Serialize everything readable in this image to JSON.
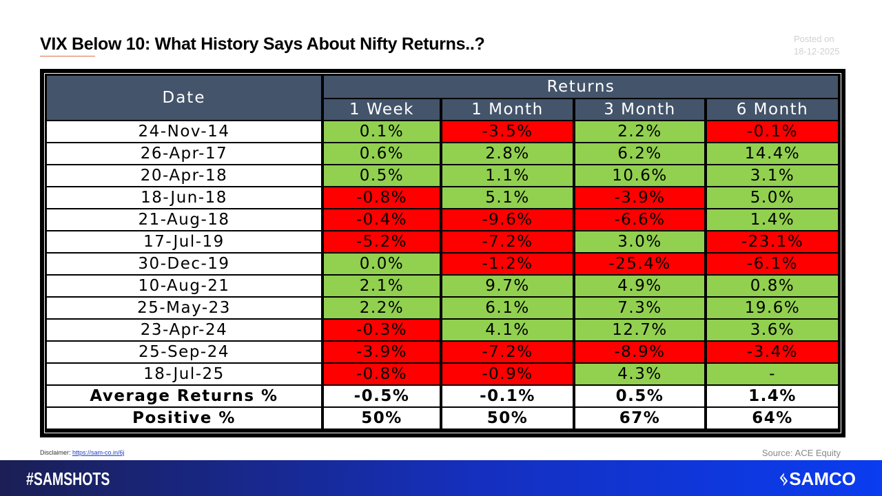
{
  "title": "VIX Below 10: What History Says About Nifty Returns..?",
  "posted": {
    "label": "Posted on",
    "date": "18-12-2025"
  },
  "table": {
    "date_header": "Date",
    "group_header": "Returns",
    "columns": [
      "1 Week",
      "1 Month",
      "3 Month",
      "6 Month"
    ],
    "rows": [
      {
        "date": "24-Nov-14",
        "values": [
          "0.1%",
          "-3.5%",
          "2.2%",
          "-0.1%"
        ]
      },
      {
        "date": "26-Apr-17",
        "values": [
          "0.6%",
          "2.8%",
          "6.2%",
          "14.4%"
        ]
      },
      {
        "date": "20-Apr-18",
        "values": [
          "0.5%",
          "1.1%",
          "10.6%",
          "3.1%"
        ]
      },
      {
        "date": "18-Jun-18",
        "values": [
          "-0.8%",
          "5.1%",
          "-3.9%",
          "5.0%"
        ]
      },
      {
        "date": "21-Aug-18",
        "values": [
          "-0.4%",
          "-9.6%",
          "-6.6%",
          "1.4%"
        ]
      },
      {
        "date": "17-Jul-19",
        "values": [
          "-5.2%",
          "-7.2%",
          "3.0%",
          "-23.1%"
        ]
      },
      {
        "date": "30-Dec-19",
        "values": [
          "0.0%",
          "-1.2%",
          "-25.4%",
          "-6.1%"
        ]
      },
      {
        "date": "10-Aug-21",
        "values": [
          "2.1%",
          "9.7%",
          "4.9%",
          "0.8%"
        ]
      },
      {
        "date": "25-May-23",
        "values": [
          "2.2%",
          "6.1%",
          "7.3%",
          "19.6%"
        ]
      },
      {
        "date": "23-Apr-24",
        "values": [
          "-0.3%",
          "4.1%",
          "12.7%",
          "3.6%"
        ]
      },
      {
        "date": "25-Sep-24",
        "values": [
          "-3.9%",
          "-7.2%",
          "-8.9%",
          "-3.4%"
        ]
      },
      {
        "date": "18-Jul-25",
        "values": [
          "-0.8%",
          "-0.9%",
          "4.3%",
          "-"
        ]
      }
    ],
    "summary": [
      {
        "label": "Average Returns %",
        "values": [
          "-0.5%",
          "-0.1%",
          "0.5%",
          "1.4%"
        ]
      },
      {
        "label": "Positive %",
        "values": [
          "50%",
          "50%",
          "67%",
          "64%"
        ]
      }
    ],
    "colors": {
      "positive": "#92D050",
      "negative": "#FF0000",
      "header": "#44546A"
    }
  },
  "disclaimer": {
    "label": "Disclaimer:",
    "link": "https://sam-co.in/6j"
  },
  "source": "Source: ACE Equity",
  "footer": {
    "hashtag": "#SAMSHOTS",
    "logo": "SAMCO"
  }
}
